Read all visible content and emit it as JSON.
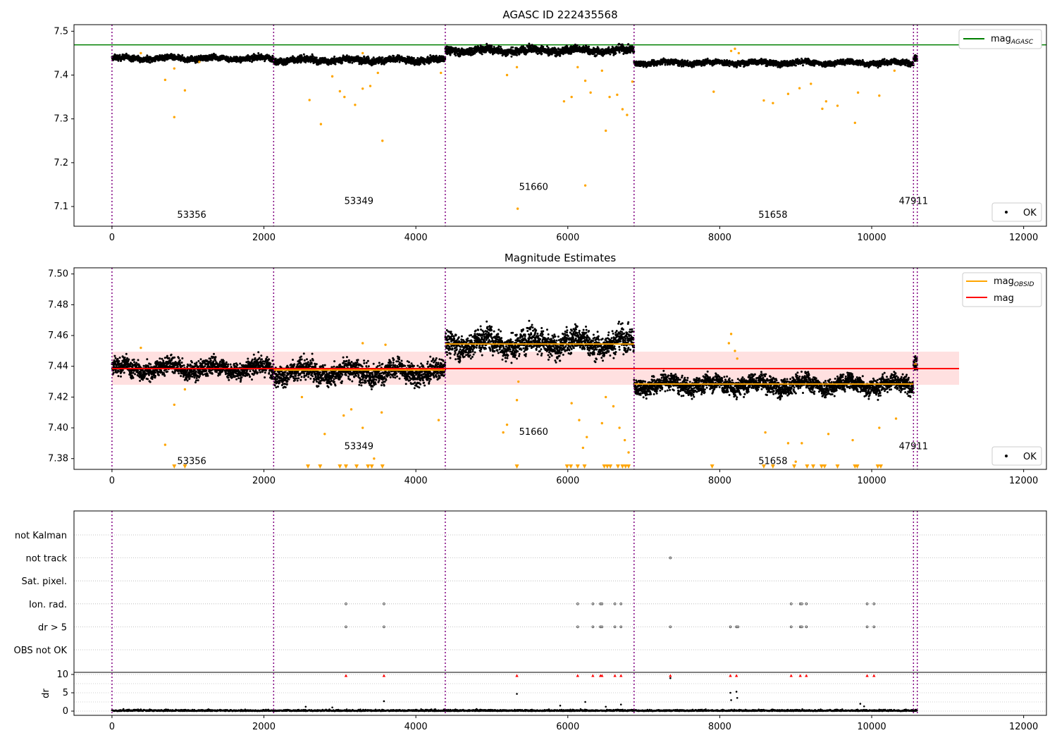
{
  "chart_data": [
    {
      "type": "scatter",
      "title": "AGASC ID 222435568",
      "xlim": [
        -500,
        12300
      ],
      "ylim": [
        7.055,
        7.515
      ],
      "xticks": [
        0,
        2000,
        4000,
        6000,
        8000,
        10000,
        12000
      ],
      "yticks": [
        7.1,
        7.2,
        7.3,
        7.4,
        7.5
      ],
      "grid": false,
      "boundaries": [
        0,
        2128,
        4387,
        6872,
        10550,
        10600
      ],
      "obsids": [
        {
          "label": "53356",
          "x": 1050,
          "y": 7.074
        },
        {
          "label": "53349",
          "x": 3250,
          "y": 7.106
        },
        {
          "label": "51660",
          "x": 5550,
          "y": 7.138
        },
        {
          "label": "51658",
          "x": 8700,
          "y": 7.074
        },
        {
          "label": "47911",
          "x": 10550,
          "y": 7.106
        }
      ],
      "hlines": [
        {
          "name": "mag",
          "sub": "AGASC",
          "value": 7.469,
          "color": "#008000"
        }
      ],
      "legend_top": {
        "placement": "top-right",
        "entries": [
          {
            "name": "mag",
            "sub": "AGASC",
            "color": "#008000"
          }
        ]
      },
      "legend_bottom": {
        "placement": "bottom-right",
        "entries": [
          {
            "name": "OK",
            "color": "#000000"
          }
        ]
      },
      "segments": [
        {
          "x0": 0,
          "x1": 2128,
          "mean": 7.438,
          "spread": 0.005
        },
        {
          "x0": 2128,
          "x1": 4387,
          "mean": 7.434,
          "spread": 0.006
        },
        {
          "x0": 4387,
          "x1": 6872,
          "mean": 7.456,
          "spread": 0.007
        },
        {
          "x0": 6872,
          "x1": 10550,
          "mean": 7.428,
          "spread": 0.005
        },
        {
          "x0": 10550,
          "x1": 10600,
          "mean": 7.44,
          "spread": 0.006
        }
      ],
      "outliers": [
        {
          "x": 380,
          "y": 7.45
        },
        {
          "x": 700,
          "y": 7.389
        },
        {
          "x": 820,
          "y": 7.415
        },
        {
          "x": 820,
          "y": 7.304
        },
        {
          "x": 960,
          "y": 7.365
        },
        {
          "x": 1150,
          "y": 7.43
        },
        {
          "x": 2600,
          "y": 7.343
        },
        {
          "x": 2750,
          "y": 7.288
        },
        {
          "x": 2900,
          "y": 7.397
        },
        {
          "x": 3000,
          "y": 7.363
        },
        {
          "x": 3060,
          "y": 7.35
        },
        {
          "x": 3200,
          "y": 7.332
        },
        {
          "x": 3300,
          "y": 7.369
        },
        {
          "x": 3400,
          "y": 7.375
        },
        {
          "x": 3500,
          "y": 7.405
        },
        {
          "x": 3560,
          "y": 7.25
        },
        {
          "x": 3300,
          "y": 7.45
        },
        {
          "x": 4330,
          "y": 7.405
        },
        {
          "x": 5200,
          "y": 7.4
        },
        {
          "x": 5330,
          "y": 7.418
        },
        {
          "x": 5340,
          "y": 7.095
        },
        {
          "x": 5950,
          "y": 7.34
        },
        {
          "x": 6050,
          "y": 7.35
        },
        {
          "x": 6130,
          "y": 7.418
        },
        {
          "x": 6230,
          "y": 7.387
        },
        {
          "x": 6230,
          "y": 7.148
        },
        {
          "x": 6300,
          "y": 7.36
        },
        {
          "x": 6450,
          "y": 7.41
        },
        {
          "x": 6500,
          "y": 7.273
        },
        {
          "x": 6550,
          "y": 7.35
        },
        {
          "x": 6650,
          "y": 7.355
        },
        {
          "x": 6720,
          "y": 7.322
        },
        {
          "x": 6780,
          "y": 7.309
        },
        {
          "x": 6850,
          "y": 7.385
        },
        {
          "x": 7920,
          "y": 7.362
        },
        {
          "x": 8150,
          "y": 7.455
        },
        {
          "x": 8200,
          "y": 7.46
        },
        {
          "x": 8250,
          "y": 7.45
        },
        {
          "x": 8580,
          "y": 7.342
        },
        {
          "x": 8700,
          "y": 7.336
        },
        {
          "x": 8900,
          "y": 7.357
        },
        {
          "x": 9050,
          "y": 7.37
        },
        {
          "x": 9200,
          "y": 7.38
        },
        {
          "x": 9350,
          "y": 7.323
        },
        {
          "x": 9400,
          "y": 7.34
        },
        {
          "x": 9550,
          "y": 7.33
        },
        {
          "x": 9780,
          "y": 7.291
        },
        {
          "x": 9820,
          "y": 7.36
        },
        {
          "x": 10100,
          "y": 7.353
        },
        {
          "x": 10300,
          "y": 7.41
        }
      ]
    },
    {
      "type": "scatter",
      "title": "Magnitude Estimates",
      "xlim": [
        -500,
        12300
      ],
      "ylim": [
        7.373,
        7.504
      ],
      "xticks": [
        0,
        2000,
        4000,
        6000,
        8000,
        10000,
        12000
      ],
      "yticks": [
        7.38,
        7.4,
        7.42,
        7.44,
        7.46,
        7.48,
        7.5
      ],
      "grid": false,
      "boundaries": [
        0,
        2128,
        4387,
        6872,
        10550,
        10600
      ],
      "obsids": [
        {
          "label": "53356",
          "x": 1050,
          "y": 7.3765
        },
        {
          "label": "53349",
          "x": 3250,
          "y": 7.386
        },
        {
          "label": "51660",
          "x": 5550,
          "y": 7.3955
        },
        {
          "label": "51658",
          "x": 8700,
          "y": 7.3765
        },
        {
          "label": "47911",
          "x": 10550,
          "y": 7.386
        }
      ],
      "mag": 7.4385,
      "mag_band": [
        7.428,
        7.4495
      ],
      "band_x": [
        0,
        11150
      ],
      "mag_obsid": [
        {
          "x0": 0,
          "x1": 2128,
          "value": 7.4385
        },
        {
          "x0": 2128,
          "x1": 4387,
          "value": 7.4375
        },
        {
          "x0": 4387,
          "x1": 6872,
          "value": 7.4545
        },
        {
          "x0": 6872,
          "x1": 10550,
          "value": 7.4285
        },
        {
          "x0": 10550,
          "x1": 10600,
          "value": 7.4415
        }
      ],
      "legend_top": {
        "placement": "top-right",
        "entries": [
          {
            "name": "mag",
            "sub": "OBSID",
            "color": "#ffa500"
          },
          {
            "name": "mag",
            "sub": "",
            "color": "#ff0000"
          }
        ]
      },
      "legend_bottom": {
        "placement": "bottom-right",
        "entries": [
          {
            "name": "OK",
            "color": "#000000"
          }
        ]
      },
      "segments": [
        {
          "x0": 0,
          "x1": 2128,
          "mean": 7.4385,
          "spread": 0.0045
        },
        {
          "x0": 2128,
          "x1": 4387,
          "mean": 7.436,
          "spread": 0.0055
        },
        {
          "x0": 4387,
          "x1": 6872,
          "mean": 7.455,
          "spread": 0.0065
        },
        {
          "x0": 6872,
          "x1": 10550,
          "mean": 7.428,
          "spread": 0.0045
        },
        {
          "x0": 10550,
          "x1": 10600,
          "mean": 7.443,
          "spread": 0.004
        }
      ],
      "outliers": [
        {
          "x": 380,
          "y": 7.452
        },
        {
          "x": 700,
          "y": 7.389
        },
        {
          "x": 820,
          "y": 7.415
        },
        {
          "x": 960,
          "y": 7.425
        },
        {
          "x": 2500,
          "y": 7.42
        },
        {
          "x": 2800,
          "y": 7.396
        },
        {
          "x": 3050,
          "y": 7.408
        },
        {
          "x": 3150,
          "y": 7.412
        },
        {
          "x": 3300,
          "y": 7.455
        },
        {
          "x": 3300,
          "y": 7.4
        },
        {
          "x": 3450,
          "y": 7.38
        },
        {
          "x": 3550,
          "y": 7.41
        },
        {
          "x": 3600,
          "y": 7.454
        },
        {
          "x": 4300,
          "y": 7.405
        },
        {
          "x": 5150,
          "y": 7.397
        },
        {
          "x": 5200,
          "y": 7.402
        },
        {
          "x": 5330,
          "y": 7.418
        },
        {
          "x": 5350,
          "y": 7.43
        },
        {
          "x": 6050,
          "y": 7.416
        },
        {
          "x": 6150,
          "y": 7.405
        },
        {
          "x": 6200,
          "y": 7.387
        },
        {
          "x": 6250,
          "y": 7.394
        },
        {
          "x": 6450,
          "y": 7.403
        },
        {
          "x": 6500,
          "y": 7.42
        },
        {
          "x": 6600,
          "y": 7.414
        },
        {
          "x": 6680,
          "y": 7.4
        },
        {
          "x": 6750,
          "y": 7.392
        },
        {
          "x": 6800,
          "y": 7.384
        },
        {
          "x": 8120,
          "y": 7.455
        },
        {
          "x": 8150,
          "y": 7.461
        },
        {
          "x": 8200,
          "y": 7.45
        },
        {
          "x": 8230,
          "y": 7.445
        },
        {
          "x": 8600,
          "y": 7.397
        },
        {
          "x": 8900,
          "y": 7.39
        },
        {
          "x": 9000,
          "y": 7.378
        },
        {
          "x": 9080,
          "y": 7.39
        },
        {
          "x": 9430,
          "y": 7.396
        },
        {
          "x": 9750,
          "y": 7.392
        },
        {
          "x": 10100,
          "y": 7.4
        },
        {
          "x": 10320,
          "y": 7.406
        }
      ],
      "below_range_markers": [
        820,
        960,
        2580,
        2740,
        3000,
        3080,
        3220,
        3370,
        3420,
        3560,
        5330,
        5990,
        6040,
        6130,
        6220,
        6480,
        6520,
        6560,
        6660,
        6720,
        6760,
        6800,
        7900,
        8580,
        8700,
        8980,
        9150,
        9230,
        9340,
        9380,
        9550,
        9780,
        9810,
        10080,
        10120
      ]
    },
    {
      "type": "scatter",
      "title": "",
      "xlim": [
        -500,
        12300
      ],
      "xticks": [
        0,
        2000,
        4000,
        6000,
        8000,
        10000,
        12000
      ],
      "boundaries": [
        0,
        2128,
        4387,
        6872,
        10550,
        10600
      ],
      "flag_rows": [
        "not Kalman",
        "not track",
        "Sat. pixel.",
        "Ion. rad.",
        "dr > 5",
        "OBS not OK"
      ],
      "flags": [
        {
          "row": "not track",
          "x": [
            7350
          ]
        },
        {
          "row": "Ion. rad.",
          "x": [
            3080,
            3580,
            6130,
            6330,
            6430,
            6450,
            6620,
            6700,
            8940,
            9060,
            9080,
            9140,
            9940,
            10030
          ]
        },
        {
          "row": "dr > 5",
          "x": [
            3080,
            3580,
            6130,
            6330,
            6430,
            6450,
            6620,
            6700,
            7350,
            8140,
            8220,
            8240,
            8940,
            9060,
            9080,
            9140,
            9940,
            10030
          ]
        }
      ],
      "dr_ylabel": "dr",
      "dr_yticks": [
        0,
        5,
        10
      ],
      "dr_ylim": [
        -1,
        10.5
      ],
      "dr_grid_lines": [
        0,
        2.5,
        5,
        7.5,
        10
      ],
      "dr_red_markers": [
        3080,
        3580,
        5330,
        6130,
        6330,
        6430,
        6450,
        6620,
        6700,
        7350,
        8140,
        8220,
        8940,
        9060,
        9140,
        9940,
        10030
      ],
      "dr_outliers": [
        {
          "x": 2550,
          "y": 1.2
        },
        {
          "x": 2900,
          "y": 1.0
        },
        {
          "x": 3580,
          "y": 2.7
        },
        {
          "x": 5330,
          "y": 4.7
        },
        {
          "x": 5900,
          "y": 1.5
        },
        {
          "x": 6230,
          "y": 2.5
        },
        {
          "x": 6500,
          "y": 1.2
        },
        {
          "x": 6700,
          "y": 1.8
        },
        {
          "x": 7350,
          "y": 9.0
        },
        {
          "x": 8140,
          "y": 5.0
        },
        {
          "x": 8150,
          "y": 3.0
        },
        {
          "x": 8220,
          "y": 5.3
        },
        {
          "x": 8230,
          "y": 3.6
        },
        {
          "x": 9850,
          "y": 2.0
        },
        {
          "x": 9900,
          "y": 1.3
        }
      ]
    }
  ]
}
